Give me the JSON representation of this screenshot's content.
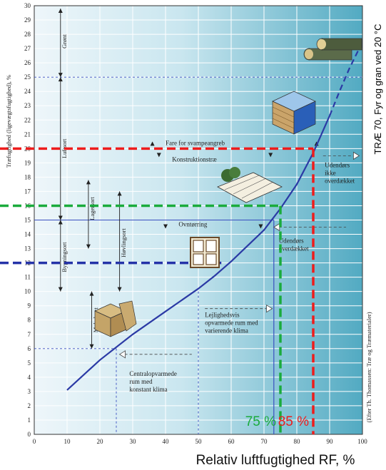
{
  "chart_data": {
    "type": "line",
    "x_label": "Relativ luftfugtighed RF, %",
    "y_label": "Træfugtighed (ligevægtsfugtighed), %",
    "side_title": "TRÆ 70, Fyr og gran ved 20 °C",
    "credit": "(Efter Th. Thomassen: Træ og Træmaterialer)",
    "xlim": [
      0,
      100
    ],
    "ylim": [
      0,
      30
    ],
    "x_ticks": [
      "0",
      "10",
      "20",
      "30",
      "40",
      "50",
      "60",
      "70",
      "80",
      "90",
      "100"
    ],
    "y_ticks": [
      "0",
      "1",
      "2",
      "3",
      "4",
      "5",
      "6",
      "7",
      "8",
      "9",
      "10",
      "11",
      "12",
      "13",
      "14",
      "15",
      "16",
      "17",
      "18",
      "19",
      "20",
      "21",
      "22",
      "23",
      "24",
      "25",
      "26",
      "27",
      "28",
      "29",
      "30"
    ],
    "grid": true,
    "series": [
      {
        "x": [
          10,
          20,
          30,
          40,
          50,
          55,
          60,
          65,
          70,
          75,
          80,
          85,
          90
        ],
        "y": [
          3.1,
          5.2,
          7.0,
          8.6,
          10.2,
          11.1,
          12.1,
          13.2,
          14.3,
          15.8,
          17.5,
          19.7,
          22.3
        ]
      }
    ],
    "dashed_extension": {
      "x": [
        90,
        93,
        96,
        99
      ],
      "y": [
        22.3,
        24.0,
        25.6,
        27.0
      ]
    },
    "ranges": [
      {
        "label": "Grønt",
        "from": 25,
        "to": 30
      },
      {
        "label": "Luftsort",
        "from": 15,
        "to": 25
      },
      {
        "label": "Lagersort",
        "from": 13,
        "to": 18
      },
      {
        "label": "Bygningsort",
        "from": 10,
        "to": 15
      },
      {
        "label": "Høvlingsort",
        "from": 10,
        "to": 17
      },
      {
        "label": "Møbelsort",
        "from": 6,
        "to": 10
      }
    ],
    "annotations": [
      {
        "label": "Fare for svampeangreb",
        "y": 20
      },
      {
        "label": "Konstruktionstræ",
        "y": 20
      },
      {
        "label": "Ovntørring",
        "y": 15
      },
      {
        "label": "Udendørs ikke overdækket"
      },
      {
        "label": "Udendørs overdækket"
      },
      {
        "label": "Lejlighedsvis opvarmede rum med varierende klima"
      },
      {
        "label": "Centralopvarmede rum med konstant klima"
      }
    ],
    "markers": [
      {
        "x": 75,
        "y": 16,
        "color": "#1aab3c",
        "label": "75 %"
      },
      {
        "x": 85,
        "y": 20,
        "color": "#ee1c1c",
        "label": "85 %"
      },
      {
        "x": 57,
        "y": 12,
        "color": "#2533a8"
      }
    ]
  }
}
